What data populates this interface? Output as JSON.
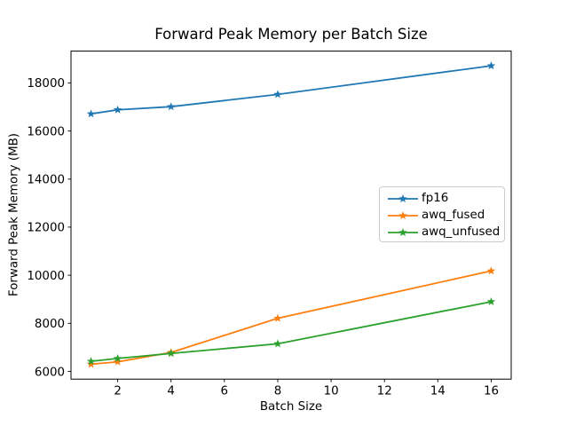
{
  "page": {
    "background": "#ffffff",
    "text_color": "#000000",
    "frame_color": "#000000"
  },
  "chart_data": {
    "type": "line",
    "title": "Forward Peak Memory per Batch Size",
    "xlabel": "Batch Size",
    "ylabel": "Forward Peak Memory (MB)",
    "x": [
      1,
      2,
      4,
      8,
      16
    ],
    "series": [
      {
        "name": "fp16",
        "color": "#1f77b4",
        "values": [
          16710,
          16880,
          17010,
          17520,
          18710
        ]
      },
      {
        "name": "awq_fused",
        "color": "#ff7f0e",
        "values": [
          6300,
          6400,
          6790,
          8210,
          10180
        ]
      },
      {
        "name": "awq_unfused",
        "color": "#2ca02c",
        "values": [
          6420,
          6540,
          6750,
          7150,
          8900
        ]
      }
    ],
    "marker": "star",
    "xticks": [
      2,
      4,
      6,
      8,
      10,
      12,
      14,
      16
    ],
    "yticks": [
      6000,
      8000,
      10000,
      12000,
      14000,
      16000,
      18000
    ],
    "xlim": [
      0.25,
      16.75
    ],
    "ylim": [
      5680,
      19320
    ],
    "grid": false,
    "legend": {
      "position": "center-right",
      "entries": [
        "fp16",
        "awq_fused",
        "awq_unfused"
      ]
    }
  }
}
